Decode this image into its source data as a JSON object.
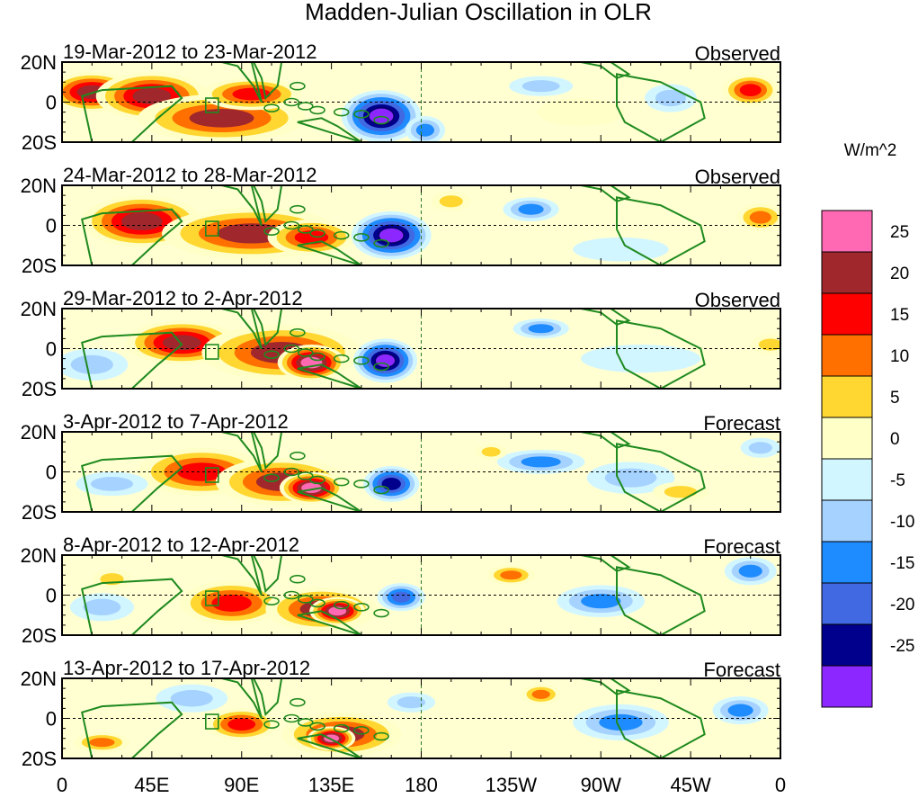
{
  "chart_data": {
    "type": "heatmap",
    "title": "Madden-Julian Oscillation in OLR",
    "colorbar": {
      "unit_label": "W/m^2",
      "tick_labels": [
        "25",
        "20",
        "15",
        "10",
        "5",
        "0",
        "-5",
        "-10",
        "-15",
        "-20",
        "-25"
      ],
      "colors_top_to_bottom": [
        "#ff69b4",
        "#a0272c",
        "#ff0000",
        "#ff7000",
        "#ffd730",
        "#ffffc8",
        "#d2f6ff",
        "#a5d2ff",
        "#1e8cff",
        "#4169e1",
        "#00008c",
        "#8c28ff"
      ]
    },
    "x_axis": {
      "tick_labels": [
        "0",
        "45E",
        "90E",
        "135E",
        "180",
        "135W",
        "90W",
        "45W",
        "0"
      ],
      "tick_values_deg_east": [
        0,
        45,
        90,
        135,
        180,
        225,
        270,
        315,
        360
      ],
      "range_deg_east": [
        0,
        360
      ]
    },
    "y_axis": {
      "tick_labels": [
        "20N",
        "0",
        "20S"
      ],
      "tick_values": [
        20,
        0,
        -20
      ],
      "range": [
        -20,
        20
      ]
    },
    "reference_lines": {
      "equator": 0,
      "dateline_deg_east": 180
    },
    "panels": [
      {
        "period": "19-Mar-2012 to 23-Mar-2012",
        "kind": "Observed",
        "anomalies": [
          {
            "lon": 15,
            "lat": 5,
            "rx": 22,
            "ry": 10,
            "value": 22
          },
          {
            "lon": 45,
            "lat": 3,
            "rx": 28,
            "ry": 12,
            "value": 24
          },
          {
            "lon": 80,
            "lat": -8,
            "rx": 42,
            "ry": 12,
            "value": 20
          },
          {
            "lon": 95,
            "lat": 4,
            "rx": 25,
            "ry": 8,
            "value": 16
          },
          {
            "lon": 160,
            "lat": -7,
            "rx": 20,
            "ry": 13,
            "value": -30
          },
          {
            "lon": 182,
            "lat": -14,
            "rx": 10,
            "ry": 7,
            "value": -12
          },
          {
            "lon": 240,
            "lat": 8,
            "rx": 16,
            "ry": 5,
            "value": -7
          },
          {
            "lon": 305,
            "lat": 2,
            "rx": 13,
            "ry": 7,
            "value": -9
          },
          {
            "lon": 345,
            "lat": 6,
            "rx": 14,
            "ry": 8,
            "value": 16
          },
          {
            "lon": 260,
            "lat": -5,
            "rx": 22,
            "ry": 7,
            "value": 3
          }
        ]
      },
      {
        "period": "24-Mar-2012 to 28-Mar-2012",
        "kind": "Observed",
        "anomalies": [
          {
            "lon": 40,
            "lat": 2,
            "rx": 30,
            "ry": 13,
            "value": 24
          },
          {
            "lon": 95,
            "lat": -4,
            "rx": 45,
            "ry": 13,
            "value": 20
          },
          {
            "lon": 125,
            "lat": -6,
            "rx": 22,
            "ry": 9,
            "value": 17
          },
          {
            "lon": 165,
            "lat": -5,
            "rx": 20,
            "ry": 12,
            "value": -28
          },
          {
            "lon": 235,
            "lat": 8,
            "rx": 14,
            "ry": 6,
            "value": -12
          },
          {
            "lon": 195,
            "lat": 12,
            "rx": 10,
            "ry": 5,
            "value": 8
          },
          {
            "lon": 350,
            "lat": 4,
            "rx": 12,
            "ry": 7,
            "value": 13
          },
          {
            "lon": 280,
            "lat": -12,
            "rx": 24,
            "ry": 6,
            "value": -5
          }
        ]
      },
      {
        "period": "29-Mar-2012 to 2-Apr-2012",
        "kind": "Observed",
        "anomalies": [
          {
            "lon": 60,
            "lat": 3,
            "rx": 28,
            "ry": 11,
            "value": 21
          },
          {
            "lon": 110,
            "lat": -2,
            "rx": 40,
            "ry": 14,
            "value": 20
          },
          {
            "lon": 125,
            "lat": -7,
            "rx": 17,
            "ry": 9,
            "value": 26
          },
          {
            "lon": 162,
            "lat": -6,
            "rx": 16,
            "ry": 11,
            "value": -28
          },
          {
            "lon": 240,
            "lat": 10,
            "rx": 14,
            "ry": 5,
            "value": -13
          },
          {
            "lon": 15,
            "lat": -8,
            "rx": 18,
            "ry": 8,
            "value": -8
          },
          {
            "lon": 290,
            "lat": -5,
            "rx": 30,
            "ry": 7,
            "value": -5
          },
          {
            "lon": 355,
            "lat": 2,
            "rx": 10,
            "ry": 5,
            "value": 7
          }
        ]
      },
      {
        "period": "3-Apr-2012 to 7-Apr-2012",
        "kind": "Forecast",
        "anomalies": [
          {
            "lon": 70,
            "lat": 0,
            "rx": 32,
            "ry": 12,
            "value": 18
          },
          {
            "lon": 110,
            "lat": -5,
            "rx": 33,
            "ry": 12,
            "value": 20
          },
          {
            "lon": 125,
            "lat": -8,
            "rx": 16,
            "ry": 8,
            "value": 26
          },
          {
            "lon": 165,
            "lat": -6,
            "rx": 14,
            "ry": 9,
            "value": -22
          },
          {
            "lon": 240,
            "lat": 5,
            "rx": 22,
            "ry": 6,
            "value": -12
          },
          {
            "lon": 285,
            "lat": -3,
            "rx": 22,
            "ry": 8,
            "value": -8
          },
          {
            "lon": 215,
            "lat": 10,
            "rx": 8,
            "ry": 4,
            "value": 7
          },
          {
            "lon": 25,
            "lat": -6,
            "rx": 18,
            "ry": 6,
            "value": -6
          },
          {
            "lon": 350,
            "lat": 12,
            "rx": 10,
            "ry": 5,
            "value": -9
          },
          {
            "lon": 310,
            "lat": -10,
            "rx": 14,
            "ry": 5,
            "value": 8
          }
        ]
      },
      {
        "period": "8-Apr-2012 to 12-Apr-2012",
        "kind": "Forecast",
        "anomalies": [
          {
            "lon": 85,
            "lat": -4,
            "rx": 26,
            "ry": 11,
            "value": 17
          },
          {
            "lon": 130,
            "lat": -7,
            "rx": 28,
            "ry": 11,
            "value": 20
          },
          {
            "lon": 138,
            "lat": -8,
            "rx": 14,
            "ry": 7,
            "value": 26
          },
          {
            "lon": 170,
            "lat": -1,
            "rx": 12,
            "ry": 7,
            "value": -20
          },
          {
            "lon": 225,
            "lat": 10,
            "rx": 12,
            "ry": 5,
            "value": 12
          },
          {
            "lon": 270,
            "lat": -3,
            "rx": 22,
            "ry": 8,
            "value": -11
          },
          {
            "lon": 345,
            "lat": 12,
            "rx": 13,
            "ry": 7,
            "value": -11
          },
          {
            "lon": 20,
            "lat": -6,
            "rx": 16,
            "ry": 7,
            "value": -8
          },
          {
            "lon": 25,
            "lat": 8,
            "rx": 10,
            "ry": 5,
            "value": 6
          }
        ]
      },
      {
        "period": "13-Apr-2012 to 17-Apr-2012",
        "kind": "Forecast",
        "anomalies": [
          {
            "lon": 90,
            "lat": -3,
            "rx": 18,
            "ry": 8,
            "value": 17
          },
          {
            "lon": 140,
            "lat": -8,
            "rx": 30,
            "ry": 11,
            "value": 20
          },
          {
            "lon": 135,
            "lat": -10,
            "rx": 12,
            "ry": 6,
            "value": 26
          },
          {
            "lon": 65,
            "lat": 10,
            "rx": 18,
            "ry": 7,
            "value": -9
          },
          {
            "lon": 240,
            "lat": 12,
            "rx": 10,
            "ry": 5,
            "value": 12
          },
          {
            "lon": 280,
            "lat": -2,
            "rx": 24,
            "ry": 9,
            "value": -12
          },
          {
            "lon": 340,
            "lat": 4,
            "rx": 14,
            "ry": 7,
            "value": -15
          },
          {
            "lon": 20,
            "lat": -12,
            "rx": 14,
            "ry": 5,
            "value": 11
          },
          {
            "lon": 175,
            "lat": 8,
            "rx": 12,
            "ry": 5,
            "value": -6
          }
        ]
      }
    ]
  }
}
